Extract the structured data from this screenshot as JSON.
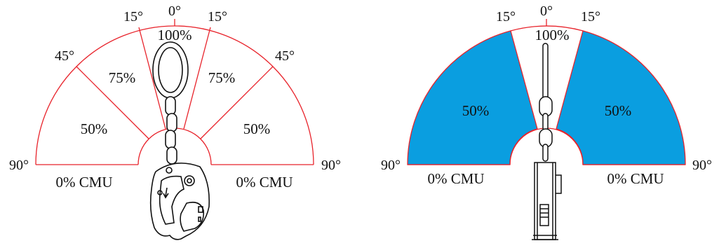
{
  "left_diagram": {
    "angles": {
      "zero": "0°",
      "fifteen_left": "15°",
      "fifteen_right": "15°",
      "fortyfive_left": "45°",
      "fortyfive_right": "45°",
      "ninety_left": "90°",
      "ninety_right": "90°"
    },
    "zones": {
      "center": "100%",
      "upper_left": "75%",
      "upper_right": "75%",
      "lower_left": "50%",
      "lower_right": "50%"
    },
    "base_left": "0% CMU",
    "base_right": "0% CMU"
  },
  "right_diagram": {
    "angles": {
      "zero": "0°",
      "fifteen_left": "15°",
      "fifteen_right": "15°",
      "ninety_left": "90°",
      "ninety_right": "90°"
    },
    "zones": {
      "center": "100%",
      "left": "50%",
      "right": "50%"
    },
    "base_left": "0% CMU",
    "base_right": "0% CMU"
  },
  "colors": {
    "outline": "#e8232b",
    "fill": "#0a9ee0",
    "ink": "#111111"
  }
}
